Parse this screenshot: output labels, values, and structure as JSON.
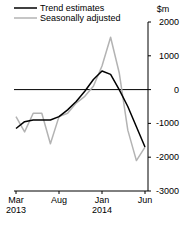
{
  "chart_data": {
    "type": "line",
    "ylabel": "$m",
    "categories": [
      "Mar 2013",
      null,
      null,
      null,
      null,
      "Aug",
      null,
      null,
      null,
      null,
      "Jan 2014",
      null,
      null,
      null,
      null,
      "Jun"
    ],
    "series": [
      {
        "name": "Trend estimates",
        "color": "#000000",
        "values": [
          -1150,
          -950,
          -900,
          -900,
          -900,
          -800,
          -600,
          -350,
          -50,
          300,
          550,
          450,
          0,
          -500,
          -1100,
          -1700
        ]
      },
      {
        "name": "Seasonally adjusted",
        "color": "#b3b3b3",
        "values": [
          -800,
          -1250,
          -700,
          -700,
          -1600,
          -800,
          -700,
          -400,
          -200,
          100,
          700,
          1550,
          500,
          -1200,
          -2100,
          -1700
        ]
      }
    ],
    "ylim": [
      -3000,
      2000
    ],
    "yticks": [
      2000,
      1000,
      0,
      -1000,
      -2000,
      -3000
    ],
    "legend": "top-left"
  }
}
